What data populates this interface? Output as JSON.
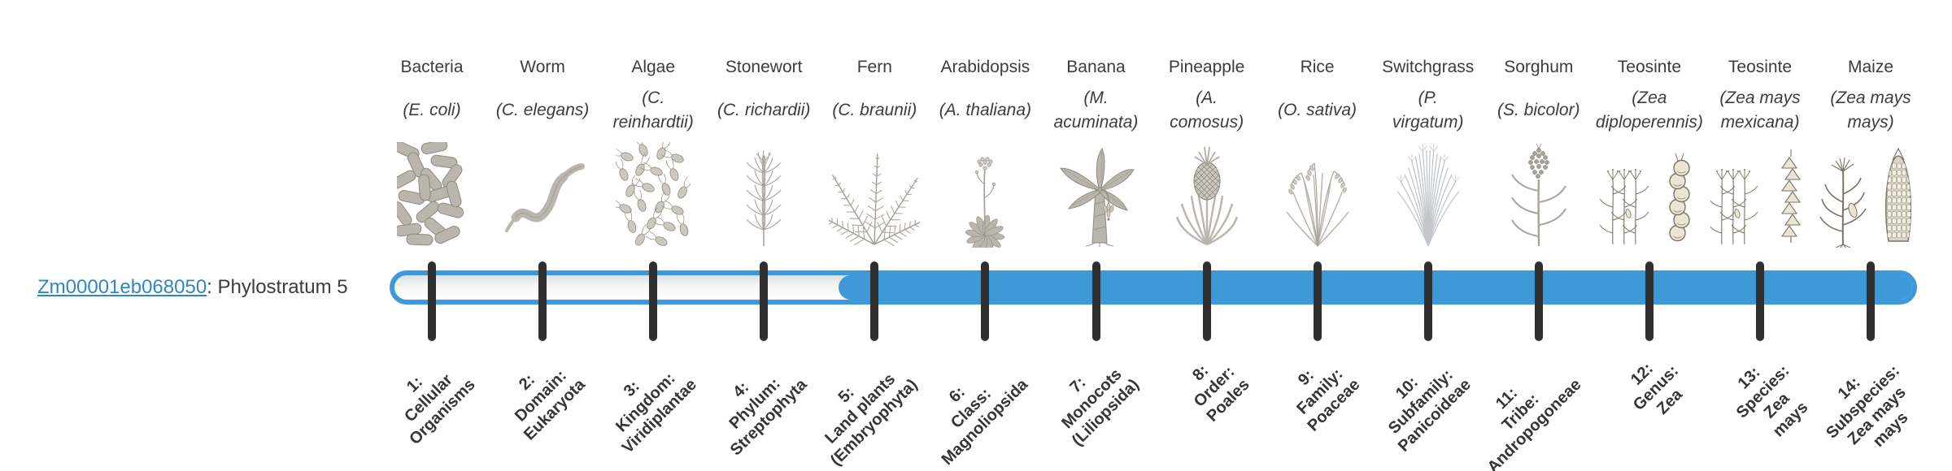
{
  "gene": {
    "link_text": "Zm00001eb068050",
    "label_suffix": ": Phylostratum 5",
    "phylostratum": 5
  },
  "colors": {
    "bar_blue": "#3d99d8",
    "tick": "#2f2f2f",
    "text": "#3c3c3c",
    "link_blue": "#2f86c6",
    "track_top": "#dedede"
  },
  "taxa": [
    {
      "common": "Bacteria",
      "scientific": "(E. coli)",
      "sci_lines": [
        "(E. coli)"
      ],
      "icon": "bacteria-icon",
      "stratum_lines": [
        "1:",
        "Cellular",
        "Organisms"
      ]
    },
    {
      "common": "Worm",
      "scientific": "(C. elegans)",
      "sci_lines": [
        "(C. elegans)"
      ],
      "icon": "worm-icon",
      "stratum_lines": [
        "2:",
        "Domain:",
        "Eukaryota"
      ]
    },
    {
      "common": "Algae",
      "scientific": "(C. reinhardtii)",
      "sci_lines": [
        "(C.",
        "reinhardtii)"
      ],
      "icon": "algae-icon",
      "stratum_lines": [
        "3:",
        "Kingdom:",
        "Viridiplantae"
      ]
    },
    {
      "common": "Stonewort",
      "scientific": "(C. richardii)",
      "sci_lines": [
        "(C. richardii)"
      ],
      "icon": "stonewort-icon",
      "stratum_lines": [
        "4:",
        "Phylum:",
        "Streptophyta"
      ]
    },
    {
      "common": "Fern",
      "scientific": "(C. braunii)",
      "sci_lines": [
        "(C. braunii)"
      ],
      "icon": "fern-icon",
      "stratum_lines": [
        "5:",
        "Land plants",
        "(Embryophyta)"
      ]
    },
    {
      "common": "Arabidopsis",
      "scientific": "(A. thaliana)",
      "sci_lines": [
        "(A. thaliana)"
      ],
      "icon": "arabidopsis-icon",
      "stratum_lines": [
        "6:",
        "Class:",
        "Magnoliopsida"
      ]
    },
    {
      "common": "Banana",
      "scientific": "(M. acuminata)",
      "sci_lines": [
        "(M.",
        "acuminata)"
      ],
      "icon": "banana-icon",
      "stratum_lines": [
        "7:",
        "Monocots",
        "(Liliopsida)"
      ]
    },
    {
      "common": "Pineapple",
      "scientific": "(A. comosus)",
      "sci_lines": [
        "(A.",
        "comosus)"
      ],
      "icon": "pineapple-icon",
      "stratum_lines": [
        "8:",
        "Order:",
        "Poales"
      ]
    },
    {
      "common": "Rice",
      "scientific": "(O. sativa)",
      "sci_lines": [
        "(O. sativa)"
      ],
      "icon": "rice-icon",
      "stratum_lines": [
        "9:",
        "Family:",
        "Poaceae"
      ]
    },
    {
      "common": "Switchgrass",
      "scientific": "(P. virgatum)",
      "sci_lines": [
        "(P.",
        "virgatum)"
      ],
      "icon": "switchgrass-icon",
      "stratum_lines": [
        "10:",
        "Subfamily:",
        "Panicoideae"
      ]
    },
    {
      "common": "Sorghum",
      "scientific": "(S. bicolor)",
      "sci_lines": [
        "(S. bicolor)"
      ],
      "icon": "sorghum-icon",
      "stratum_lines": [
        "11:",
        "Tribe:",
        "Andropogoneae"
      ]
    },
    {
      "common": "Teosinte",
      "scientific": "(Zea diploperennis)",
      "sci_lines": [
        "(Zea",
        "diploperennis)"
      ],
      "icon": "teosinte-diploperennis-icon",
      "stratum_lines": [
        "12:",
        "Genus:",
        "Zea"
      ]
    },
    {
      "common": "Teosinte",
      "scientific": "(Zea mays mexicana)",
      "sci_lines": [
        "(Zea mays",
        "mexicana)"
      ],
      "icon": "teosinte-mexicana-icon",
      "stratum_lines": [
        "13:",
        "Species:",
        "Zea",
        "mays"
      ]
    },
    {
      "common": "Maize",
      "scientific": "(Zea mays mays)",
      "sci_lines": [
        "(Zea mays",
        "mays)"
      ],
      "icon": "maize-icon",
      "stratum_lines": [
        "14:",
        "Subspecies:",
        "Zea mays",
        "mays"
      ]
    }
  ]
}
